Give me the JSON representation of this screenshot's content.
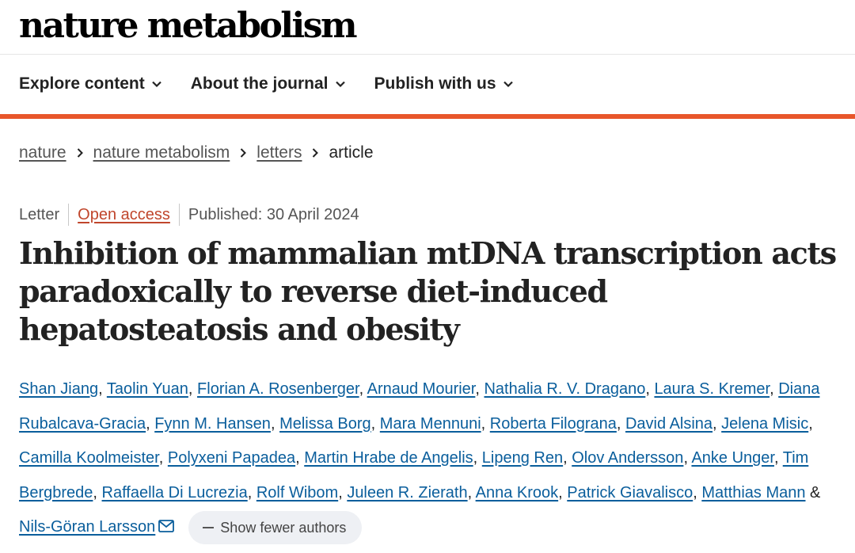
{
  "site": {
    "logo": "nature metabolism"
  },
  "nav": {
    "items": [
      {
        "label": "Explore content"
      },
      {
        "label": "About the journal"
      },
      {
        "label": "Publish with us"
      }
    ]
  },
  "breadcrumb": {
    "items": [
      {
        "label": "nature"
      },
      {
        "label": "nature metabolism"
      },
      {
        "label": "letters"
      },
      {
        "label": "article"
      }
    ]
  },
  "article": {
    "type": "Letter",
    "access": "Open access",
    "published": "Published: 30 April 2024",
    "title": "Inhibition of mammalian mtDNA transcription acts paradoxically to reverse diet-induced hepatosteatosis and obesity",
    "authors": [
      "Shan Jiang",
      "Taolin Yuan",
      "Florian A. Rosenberger",
      "Arnaud Mourier",
      "Nathalia R. V. Dragano",
      "Laura S. Kremer",
      "Diana Rubalcava-Gracia",
      "Fynn M. Hansen",
      "Melissa Borg",
      "Mara Mennuni",
      "Roberta Filograna",
      "David Alsina",
      "Jelena Misic",
      "Camilla Koolmeister",
      "Polyxeni Papadea",
      "Martin Hrabe de Angelis",
      "Lipeng Ren",
      "Olov Andersson",
      "Anke Unger",
      "Tim Bergbrede",
      "Raffaella Di Lucrezia",
      "Rolf Wibom",
      "Juleen R. Zierath",
      "Anna Krook",
      "Patrick Giavalisco",
      "Matthias Mann"
    ],
    "last_author_joiner": "&",
    "corresponding_author": "Nils-Göran Larsson",
    "author_separator": ",",
    "show_fewer_label": "Show fewer authors"
  },
  "colors": {
    "accent_bar": "#e8562a",
    "link": "#0a5e9c",
    "open_access": "#c0462c"
  },
  "icons": {
    "nav_chevron": "chevron-down-icon",
    "breadcrumb_sep": "chevron-right-icon",
    "mail": "mail-icon"
  }
}
